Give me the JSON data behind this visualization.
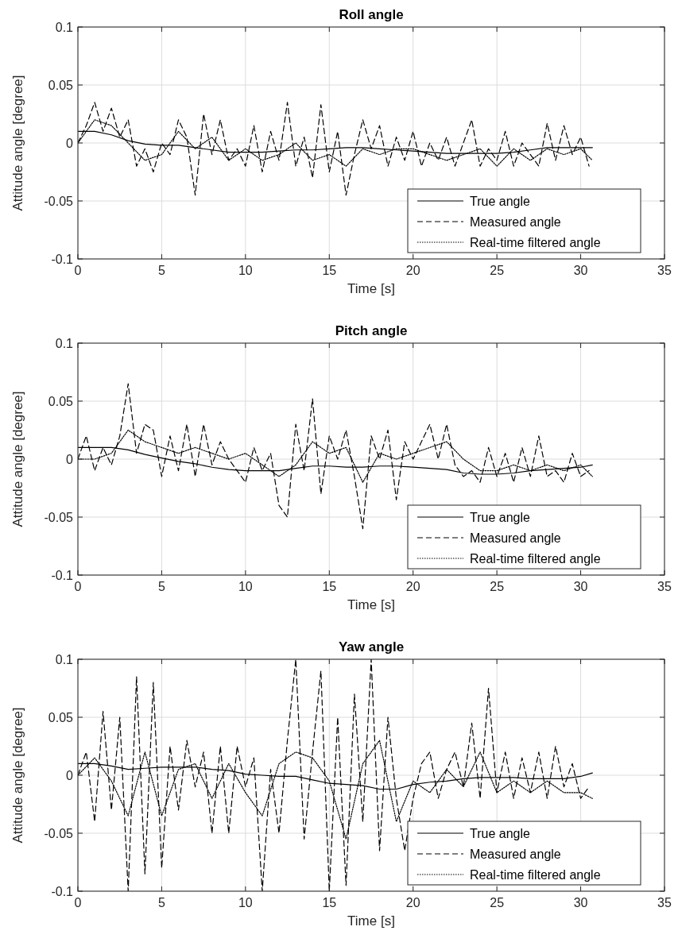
{
  "chart_data": [
    {
      "type": "line",
      "title": "Roll angle",
      "xlabel": "Time [s]",
      "ylabel": "Attitude angle [degree]",
      "xlim": [
        0,
        35
      ],
      "xticks": [
        0,
        5,
        10,
        15,
        20,
        25,
        30,
        35
      ],
      "ylim": [
        -0.1,
        0.1
      ],
      "yticks": [
        -0.1,
        -0.05,
        0,
        0.05,
        0.1
      ],
      "grid": true,
      "legend": "bottom right",
      "series": [
        {
          "name": "True angle",
          "color": "#000000",
          "line_style": "solid",
          "x": [
            0,
            1,
            2,
            3,
            4,
            5,
            6,
            7,
            8,
            9,
            10,
            11,
            12,
            13,
            14,
            15,
            16,
            17,
            18,
            19,
            20,
            21,
            22,
            23,
            24,
            25,
            26,
            27,
            28,
            29,
            30,
            30.7
          ],
          "values": [
            0.01,
            0.01,
            0.007,
            0.002,
            -0.001,
            -0.002,
            -0.002,
            -0.004,
            -0.006,
            -0.008,
            -0.008,
            -0.008,
            -0.007,
            -0.006,
            -0.006,
            -0.005,
            -0.004,
            -0.004,
            -0.005,
            -0.006,
            -0.007,
            -0.008,
            -0.009,
            -0.009,
            -0.009,
            -0.009,
            -0.008,
            -0.006,
            -0.004,
            -0.004,
            -0.004,
            -0.004
          ]
        },
        {
          "name": "Measured angle",
          "color": "#000000",
          "line_style": "dashed",
          "x": [
            0,
            0.5,
            1,
            1.5,
            2,
            2.5,
            3,
            3.5,
            4,
            4.5,
            5,
            5.5,
            6,
            6.5,
            7,
            7.5,
            8,
            8.5,
            9,
            9.5,
            10,
            10.5,
            11,
            11.5,
            12,
            12.5,
            13,
            13.5,
            14,
            14.5,
            15,
            15.5,
            16,
            16.5,
            17,
            17.5,
            18,
            18.5,
            19,
            19.5,
            20,
            20.5,
            21,
            21.5,
            22,
            22.5,
            23,
            23.5,
            24,
            24.5,
            25,
            25.5,
            26,
            26.5,
            27,
            27.5,
            28,
            28.5,
            29,
            29.5,
            30,
            30.5
          ],
          "values": [
            0,
            0.015,
            0.035,
            0.01,
            0.03,
            0.005,
            0.02,
            -0.02,
            -0.005,
            -0.025,
            0,
            -0.01,
            0.02,
            0.005,
            -0.045,
            0.025,
            -0.01,
            0.02,
            -0.015,
            -0.005,
            -0.02,
            0.015,
            -0.025,
            0.01,
            -0.015,
            0.035,
            -0.02,
            0.005,
            -0.03,
            0.033,
            -0.025,
            0.01,
            -0.045,
            -0.01,
            0.02,
            -0.005,
            0.015,
            -0.02,
            0.005,
            -0.015,
            0.01,
            -0.02,
            0,
            -0.015,
            0.005,
            -0.02,
            0,
            0.02,
            -0.02,
            -0.005,
            -0.015,
            0.01,
            -0.02,
            0,
            -0.01,
            -0.02,
            0.017,
            -0.015,
            0.015,
            -0.01,
            0.005,
            -0.02
          ]
        },
        {
          "name": "Real-time filtered angle",
          "color": "#000000",
          "line_style": "dotted",
          "x": [
            0,
            1,
            2,
            3,
            4,
            5,
            6,
            7,
            8,
            9,
            10,
            11,
            12,
            13,
            14,
            15,
            16,
            17,
            18,
            19,
            20,
            21,
            22,
            23,
            24,
            25,
            26,
            27,
            28,
            29,
            30,
            30.7
          ],
          "values": [
            0,
            0.02,
            0.015,
            0,
            -0.015,
            -0.01,
            0.01,
            -0.005,
            0.005,
            -0.015,
            -0.005,
            -0.015,
            -0.01,
            0,
            -0.015,
            -0.01,
            -0.02,
            -0.005,
            -0.01,
            -0.005,
            -0.005,
            -0.01,
            -0.015,
            -0.01,
            -0.005,
            -0.02,
            -0.005,
            -0.015,
            -0.005,
            -0.01,
            -0.005,
            -0.015
          ]
        }
      ]
    },
    {
      "type": "line",
      "title": "Pitch angle",
      "xlabel": "Time [s]",
      "ylabel": "Attitude angle [degree]",
      "xlim": [
        0,
        35
      ],
      "xticks": [
        0,
        5,
        10,
        15,
        20,
        25,
        30,
        35
      ],
      "ylim": [
        -0.1,
        0.1
      ],
      "yticks": [
        -0.1,
        -0.05,
        0,
        0.05,
        0.1
      ],
      "grid": true,
      "legend": "bottom right",
      "series": [
        {
          "name": "True angle",
          "color": "#000000",
          "line_style": "solid",
          "x": [
            0,
            1,
            2,
            3,
            4,
            5,
            6,
            7,
            8,
            9,
            10,
            11,
            12,
            13,
            14,
            15,
            16,
            17,
            18,
            19,
            20,
            21,
            22,
            23,
            24,
            25,
            26,
            27,
            28,
            29,
            30,
            30.7
          ],
          "values": [
            0.01,
            0.01,
            0.01,
            0.008,
            0.004,
            0.001,
            -0.002,
            -0.004,
            -0.007,
            -0.009,
            -0.01,
            -0.01,
            -0.01,
            -0.008,
            -0.006,
            -0.006,
            -0.007,
            -0.007,
            -0.006,
            -0.006,
            -0.007,
            -0.008,
            -0.009,
            -0.012,
            -0.013,
            -0.013,
            -0.012,
            -0.01,
            -0.009,
            -0.008,
            -0.007,
            -0.005
          ]
        },
        {
          "name": "Measured angle",
          "color": "#000000",
          "line_style": "dashed",
          "x": [
            0,
            0.5,
            1,
            1.5,
            2,
            2.5,
            3,
            3.5,
            4,
            4.5,
            5,
            5.5,
            6,
            6.5,
            7,
            7.5,
            8,
            8.5,
            9,
            9.5,
            10,
            10.5,
            11,
            11.5,
            12,
            12.5,
            13,
            13.5,
            14,
            14.5,
            15,
            15.5,
            16,
            16.5,
            17,
            17.5,
            18,
            18.5,
            19,
            19.5,
            20,
            20.5,
            21,
            21.5,
            22,
            22.5,
            23,
            23.5,
            24,
            24.5,
            25,
            25.5,
            26,
            26.5,
            27,
            27.5,
            28,
            28.5,
            29,
            29.5,
            30,
            30.5
          ],
          "values": [
            0,
            0.02,
            -0.01,
            0.01,
            -0.005,
            0.02,
            0.065,
            0.005,
            0.03,
            0.025,
            -0.015,
            0.02,
            -0.01,
            0.03,
            -0.015,
            0.03,
            -0.005,
            0.015,
            0,
            -0.01,
            -0.02,
            0.01,
            -0.01,
            0.005,
            -0.04,
            -0.05,
            0.03,
            -0.01,
            0.052,
            -0.03,
            0.02,
            0,
            0.025,
            -0.015,
            -0.06,
            0.02,
            0,
            0.025,
            -0.035,
            0.015,
            0,
            0.015,
            0.03,
            0,
            0.03,
            -0.005,
            -0.015,
            -0.01,
            -0.02,
            0.01,
            -0.015,
            0.005,
            -0.02,
            0.01,
            -0.015,
            0.02,
            -0.015,
            -0.01,
            -0.02,
            0.005,
            -0.015,
            -0.01
          ]
        },
        {
          "name": "Real-time filtered angle",
          "color": "#000000",
          "line_style": "dotted",
          "x": [
            0,
            1,
            2,
            3,
            4,
            5,
            6,
            7,
            8,
            9,
            10,
            11,
            12,
            13,
            14,
            15,
            16,
            17,
            18,
            19,
            20,
            21,
            22,
            23,
            24,
            25,
            26,
            27,
            28,
            29,
            30,
            30.7
          ],
          "values": [
            0,
            0,
            0.005,
            0.025,
            0.015,
            0.01,
            0.005,
            0.01,
            0.005,
            0,
            0.005,
            -0.005,
            -0.015,
            -0.005,
            0.015,
            0.005,
            0.01,
            -0.02,
            0.005,
            0,
            0.005,
            0.01,
            0.015,
            0,
            -0.01,
            -0.01,
            -0.005,
            -0.01,
            -0.005,
            -0.01,
            -0.005,
            -0.015
          ]
        }
      ]
    },
    {
      "type": "line",
      "title": "Yaw angle",
      "xlabel": "Time [s]",
      "ylabel": "Attitude angle [degree]",
      "xlim": [
        0,
        35
      ],
      "xticks": [
        0,
        5,
        10,
        15,
        20,
        25,
        30,
        35
      ],
      "ylim": [
        -0.1,
        0.1
      ],
      "yticks": [
        -0.1,
        -0.05,
        0,
        0.05,
        0.1
      ],
      "grid": true,
      "legend": "bottom right",
      "series": [
        {
          "name": "True angle",
          "color": "#000000",
          "line_style": "solid",
          "x": [
            0,
            1,
            2,
            3,
            4,
            5,
            6,
            7,
            8,
            9,
            10,
            11,
            12,
            13,
            14,
            15,
            16,
            17,
            18,
            19,
            20,
            21,
            22,
            23,
            24,
            25,
            26,
            27,
            28,
            29,
            30,
            30.7
          ],
          "values": [
            0.01,
            0.01,
            0.008,
            0.005,
            0.006,
            0.007,
            0.007,
            0.007,
            0.005,
            0.004,
            0.001,
            0,
            -0.001,
            -0.001,
            -0.004,
            -0.007,
            -0.008,
            -0.009,
            -0.012,
            -0.012,
            -0.008,
            -0.006,
            -0.005,
            -0.003,
            -0.002,
            -0.002,
            -0.002,
            -0.003,
            -0.003,
            -0.003,
            -0.001,
            0.002
          ]
        },
        {
          "name": "Measured angle",
          "color": "#000000",
          "line_style": "dashed",
          "x": [
            0,
            0.5,
            1,
            1.5,
            2,
            2.5,
            3,
            3.5,
            4,
            4.5,
            5,
            5.5,
            6,
            6.5,
            7,
            7.5,
            8,
            8.5,
            9,
            9.5,
            10,
            10.5,
            11,
            11.5,
            12,
            12.5,
            13,
            13.5,
            14,
            14.5,
            15,
            15.5,
            16,
            16.5,
            17,
            17.5,
            18,
            18.5,
            19,
            19.5,
            20,
            20.5,
            21,
            21.5,
            22,
            22.5,
            23,
            23.5,
            24,
            24.5,
            25,
            25.5,
            26,
            26.5,
            27,
            27.5,
            28,
            28.5,
            29,
            29.5,
            30,
            30.5
          ],
          "values": [
            0,
            0.02,
            -0.04,
            0.055,
            -0.03,
            0.05,
            -0.1,
            0.085,
            -0.085,
            0.08,
            -0.08,
            0.025,
            -0.03,
            0.03,
            -0.01,
            0.02,
            -0.05,
            0.025,
            -0.05,
            0.025,
            -0.01,
            0.015,
            -0.1,
            0.005,
            -0.05,
            0.03,
            0.1,
            -0.055,
            0.02,
            0.09,
            -0.1,
            0.05,
            -0.095,
            0.07,
            -0.04,
            0.1,
            -0.065,
            0.05,
            -0.02,
            -0.065,
            -0.02,
            0.01,
            0.02,
            -0.02,
            0.005,
            0.02,
            -0.01,
            0.045,
            -0.02,
            0.075,
            -0.015,
            0.02,
            -0.02,
            0.015,
            -0.015,
            0.02,
            -0.02,
            0.025,
            -0.01,
            0.01,
            -0.02,
            -0.01
          ]
        },
        {
          "name": "Real-time filtered angle",
          "color": "#000000",
          "line_style": "dotted",
          "x": [
            0,
            1,
            2,
            3,
            4,
            5,
            6,
            7,
            8,
            9,
            10,
            11,
            12,
            13,
            14,
            15,
            16,
            17,
            18,
            19,
            20,
            21,
            22,
            23,
            24,
            25,
            26,
            27,
            28,
            29,
            30,
            30.7
          ],
          "values": [
            0,
            0.015,
            -0.005,
            -0.035,
            0.02,
            -0.035,
            0.005,
            0.01,
            -0.02,
            0.01,
            -0.015,
            -0.035,
            0.01,
            0.02,
            0.015,
            -0.005,
            -0.055,
            0.01,
            0.03,
            -0.04,
            -0.005,
            -0.015,
            0.005,
            -0.01,
            0.02,
            -0.015,
            -0.005,
            -0.015,
            -0.005,
            -0.015,
            -0.015,
            -0.02
          ]
        }
      ]
    }
  ]
}
